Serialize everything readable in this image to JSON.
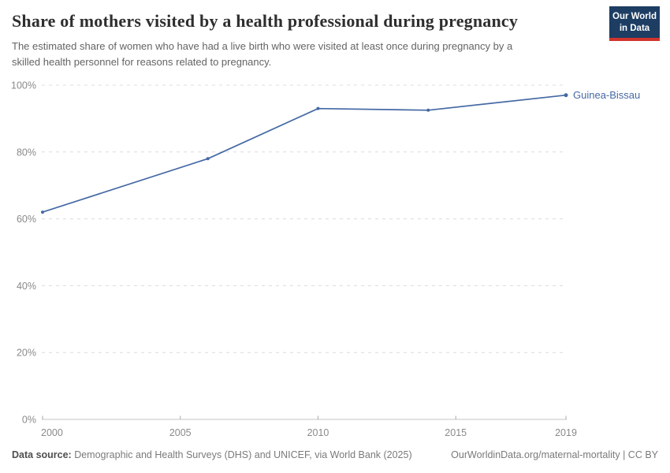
{
  "header": {
    "title": "Share of mothers visited by a health professional during pregnancy",
    "subtitle_lines": [
      "The estimated share of women who have had a live birth who were visited at least once during pregnancy by a",
      "skilled health personnel for reasons related to pregnancy."
    ],
    "logo": {
      "line1": "Our World",
      "line2": "in Data"
    }
  },
  "chart_data": {
    "type": "line",
    "title": "Share of mothers visited by a health professional during pregnancy",
    "subtitle": "The estimated share of women who have had a live birth who were visited at least once during pregnancy by a skilled health personnel for reasons related to pregnancy.",
    "x": [
      2000,
      2006,
      2010,
      2014,
      2019
    ],
    "series": [
      {
        "name": "Guinea-Bissau",
        "values": [
          62,
          78,
          93,
          92.5,
          97
        ],
        "color": "#4569a4"
      }
    ],
    "xlim": [
      2000,
      2019
    ],
    "ylim": [
      0,
      100
    ],
    "yticks": [
      0,
      20,
      40,
      60,
      80,
      100
    ],
    "ytick_suffix": "%",
    "xticks": [
      2000,
      2005,
      2010,
      2015,
      2019
    ],
    "grid": "horizontal-dashed",
    "legend": "line-end-label"
  },
  "colors": {
    "line": "#4569a4",
    "grid": "#dcdcdc",
    "axis": "#c6c6c6",
    "tick": "#a9a9a9",
    "tick_text": "#8a8a8a",
    "logo_bg": "#1d3d63",
    "logo_stripe": "#d0342c"
  },
  "footer": {
    "datasource_label": "Data source:",
    "datasource_text": " Demographic and Health Surveys (DHS) and UNICEF, via World Bank (2025)",
    "link_text": "OurWorldinData.org/maternal-mortality | CC BY"
  }
}
